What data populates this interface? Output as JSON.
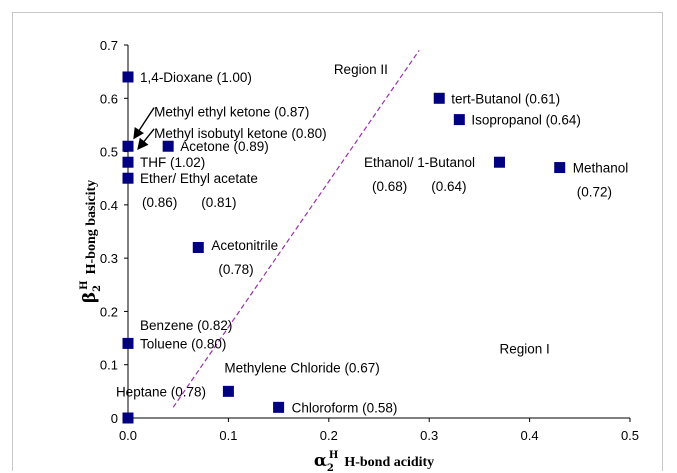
{
  "chart_data": {
    "type": "scatter",
    "title": "",
    "xlabel": {
      "symbol": "α",
      "subscript": "2",
      "superscript": "H",
      "text": "H-bond acidity"
    },
    "ylabel": {
      "symbol": "β",
      "subscript": "2",
      "superscript": "H",
      "text": "H-bong basicity"
    },
    "xlim": [
      0,
      0.5
    ],
    "ylim": [
      0,
      0.7
    ],
    "x_ticks": [
      "0.0",
      "0.1",
      "0.2",
      "0.3",
      "0.4",
      "0.5"
    ],
    "y_ticks": [
      "0",
      "0.1",
      "0.2",
      "0.3",
      "0.4",
      "0.5",
      "0.6",
      "0.7"
    ],
    "grid": false,
    "marker_color": "#000080",
    "divider_color": "#9b2fb0",
    "divider_line": {
      "x": [
        0.045,
        0.29
      ],
      "y": [
        0.02,
        0.69
      ]
    },
    "regions": [
      {
        "label": "Region II",
        "x": 0.205,
        "y": 0.655
      },
      {
        "label": "Region I",
        "x": 0.37,
        "y": 0.13
      }
    ],
    "points": [
      {
        "x": 0.0,
        "y": 0.64
      },
      {
        "x": 0.0,
        "y": 0.51
      },
      {
        "x": 0.0,
        "y": 0.48
      },
      {
        "x": 0.0,
        "y": 0.45
      },
      {
        "x": 0.0,
        "y": 0.14
      },
      {
        "x": 0.0,
        "y": 0.0
      },
      {
        "x": 0.04,
        "y": 0.51
      },
      {
        "x": 0.07,
        "y": 0.32
      },
      {
        "x": 0.1,
        "y": 0.05
      },
      {
        "x": 0.15,
        "y": 0.02
      },
      {
        "x": 0.31,
        "y": 0.6
      },
      {
        "x": 0.33,
        "y": 0.56
      },
      {
        "x": 0.37,
        "y": 0.48
      },
      {
        "x": 0.43,
        "y": 0.47
      }
    ],
    "annotations": [
      {
        "text": "1,4-Dioxane (1.00)",
        "x": 0.012,
        "y": 0.64
      },
      {
        "text": "Methyl ethyl ketone (0.87)",
        "x": 0.026,
        "y": 0.575
      },
      {
        "text": "Methyl isobutyl ketone (0.80)",
        "x": 0.026,
        "y": 0.535
      },
      {
        "text": "Acetone (0.89)",
        "x": 0.052,
        "y": 0.51
      },
      {
        "text": "THF (1.02)",
        "x": 0.012,
        "y": 0.48
      },
      {
        "text": "Ether/ Ethyl acetate",
        "x": 0.012,
        "y": 0.45
      },
      {
        "text": "(0.86)",
        "x": 0.014,
        "y": 0.405
      },
      {
        "text": "(0.81)",
        "x": 0.073,
        "y": 0.405
      },
      {
        "text": "Acetonitrile",
        "x": 0.083,
        "y": 0.325
      },
      {
        "text": "(0.78)",
        "x": 0.09,
        "y": 0.28
      },
      {
        "text": "tert-Butanol (0.61)",
        "x": 0.322,
        "y": 0.6
      },
      {
        "text": "Isopropanol (0.64)",
        "x": 0.342,
        "y": 0.56
      },
      {
        "text": "Ethanol/ 1-Butanol",
        "x": 0.235,
        "y": 0.48
      },
      {
        "text": "(0.68)",
        "x": 0.243,
        "y": 0.435
      },
      {
        "text": "(0.64)",
        "x": 0.302,
        "y": 0.435
      },
      {
        "text": "Methanol",
        "x": 0.443,
        "y": 0.47
      },
      {
        "text": "(0.72)",
        "x": 0.447,
        "y": 0.425
      },
      {
        "text": "Benzene (0.82)",
        "x": 0.012,
        "y": 0.175
      },
      {
        "text": "Toluene (0.80)",
        "x": 0.012,
        "y": 0.14
      },
      {
        "text": "Methylene Chloride (0.67)",
        "x": 0.096,
        "y": 0.095
      },
      {
        "text": "Heptane (0.78)",
        "x": -0.012,
        "y": 0.05
      },
      {
        "text": "Chloroform (0.58)",
        "x": 0.163,
        "y": 0.02
      }
    ],
    "arrows": [
      {
        "from": [
          0.026,
          0.575
        ],
        "to": [
          0.006,
          0.525
        ]
      },
      {
        "from": [
          0.026,
          0.535
        ],
        "to": [
          0.01,
          0.505
        ]
      }
    ]
  }
}
